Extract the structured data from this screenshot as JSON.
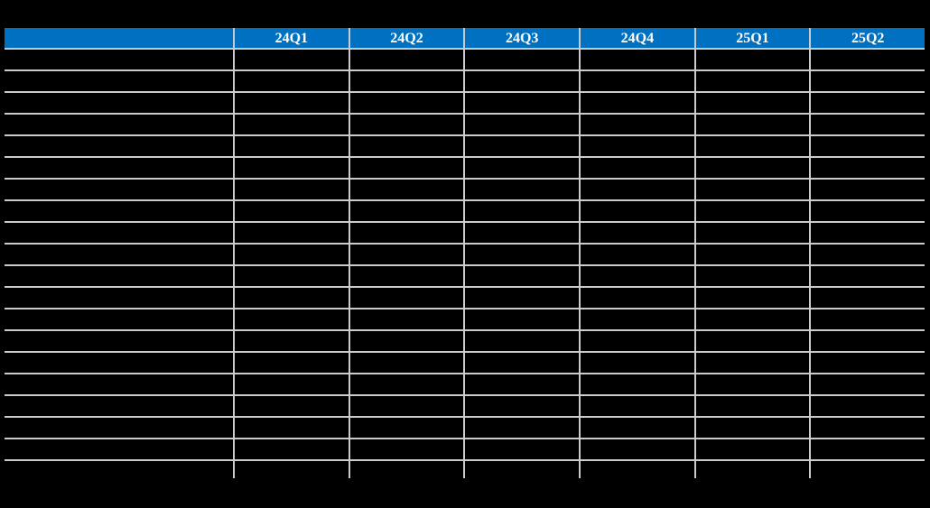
{
  "table": {
    "header": [
      "",
      "24Q1",
      "24Q2",
      "24Q3",
      "24Q4",
      "25Q1",
      "25Q2"
    ],
    "body_rows_empty": true,
    "partial_bottom_row": true
  },
  "chart_data": {
    "type": "table",
    "title": "",
    "columns": [
      "",
      "24Q1",
      "24Q2",
      "24Q3",
      "24Q4",
      "25Q1",
      "25Q2"
    ],
    "rows": [
      [
        "",
        "",
        "",
        "",
        "",
        "",
        ""
      ],
      [
        "",
        "",
        "",
        "",
        "",
        "",
        ""
      ],
      [
        "",
        "",
        "",
        "",
        "",
        "",
        ""
      ],
      [
        "",
        "",
        "",
        "",
        "",
        "",
        ""
      ],
      [
        "",
        "",
        "",
        "",
        "",
        "",
        ""
      ],
      [
        "",
        "",
        "",
        "",
        "",
        "",
        ""
      ],
      [
        "",
        "",
        "",
        "",
        "",
        "",
        ""
      ],
      [
        "",
        "",
        "",
        "",
        "",
        "",
        ""
      ],
      [
        "",
        "",
        "",
        "",
        "",
        "",
        ""
      ],
      [
        "",
        "",
        "",
        "",
        "",
        "",
        ""
      ],
      [
        "",
        "",
        "",
        "",
        "",
        "",
        ""
      ],
      [
        "",
        "",
        "",
        "",
        "",
        "",
        ""
      ],
      [
        "",
        "",
        "",
        "",
        "",
        "",
        ""
      ],
      [
        "",
        "",
        "",
        "",
        "",
        "",
        ""
      ],
      [
        "",
        "",
        "",
        "",
        "",
        "",
        ""
      ],
      [
        "",
        "",
        "",
        "",
        "",
        "",
        ""
      ],
      [
        "",
        "",
        "",
        "",
        "",
        "",
        ""
      ],
      [
        "",
        "",
        "",
        "",
        "",
        "",
        ""
      ],
      [
        "",
        "",
        "",
        "",
        "",
        "",
        ""
      ]
    ],
    "layout": {
      "grid": true,
      "header_fill": "#0070c0",
      "header_text_color": "#ffffff",
      "grid_line_color": "#cbcbcb",
      "background": "#000000",
      "outer_side_borders": false
    }
  },
  "colors": {
    "background": "#000000",
    "header_bg": "#0070c0",
    "header_text": "#ffffff",
    "grid_line": "#cbcbcb"
  }
}
